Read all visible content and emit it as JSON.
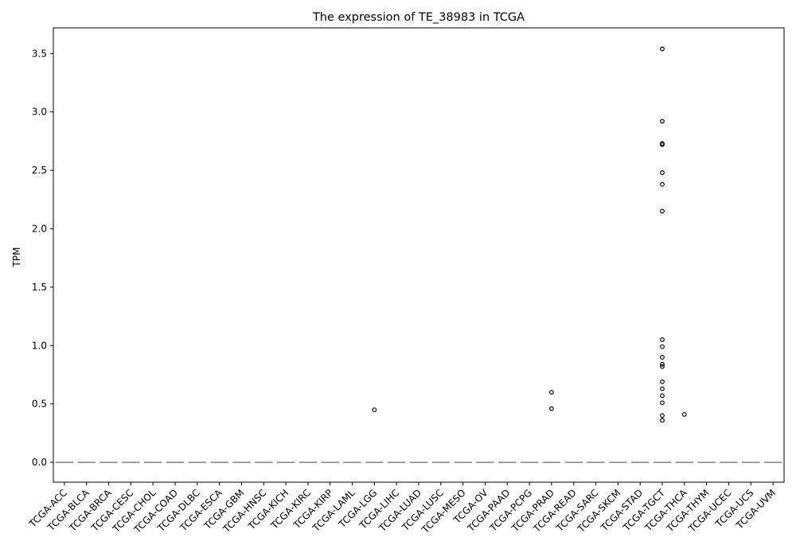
{
  "chart_data": {
    "type": "box",
    "title": "The expression of TE_38983 in TCGA",
    "xlabel": "",
    "ylabel": "TPM",
    "ylim": [
      -0.17,
      3.72
    ],
    "yticks": [
      "0.0",
      "0.5",
      "1.0",
      "1.5",
      "2.0",
      "2.5",
      "3.0",
      "3.5"
    ],
    "categories": [
      "TCGA-ACC",
      "TCGA-BLCA",
      "TCGA-BRCA",
      "TCGA-CESC",
      "TCGA-CHOL",
      "TCGA-COAD",
      "TCGA-DLBC",
      "TCGA-ESCA",
      "TCGA-GBM",
      "TCGA-HNSC",
      "TCGA-KICH",
      "TCGA-KIRC",
      "TCGA-KIRP",
      "TCGA-LAML",
      "TCGA-LGG",
      "TCGA-LIHC",
      "TCGA-LUAD",
      "TCGA-LUSC",
      "TCGA-MESO",
      "TCGA-OV",
      "TCGA-PAAD",
      "TCGA-PCPG",
      "TCGA-PRAD",
      "TCGA-READ",
      "TCGA-SARC",
      "TCGA-SKCM",
      "TCGA-STAD",
      "TCGA-TGCT",
      "TCGA-THCA",
      "TCGA-THYM",
      "TCGA-UCEC",
      "TCGA-UCS",
      "TCGA-UVM"
    ],
    "median": [
      0,
      0,
      0,
      0,
      0,
      0,
      0,
      0,
      0,
      0,
      0,
      0,
      0,
      0,
      0,
      0,
      0,
      0,
      0,
      0,
      0,
      0,
      0,
      0,
      0,
      0,
      0,
      0,
      0,
      0,
      0,
      0,
      0
    ],
    "outliers": [
      {
        "category": "TCGA-LGG",
        "values": [
          0.45
        ]
      },
      {
        "category": "TCGA-PRAD",
        "values": [
          0.6,
          0.46
        ]
      },
      {
        "category": "TCGA-TGCT",
        "values": [
          3.54,
          2.92,
          2.73,
          2.72,
          2.48,
          2.38,
          2.15,
          1.05,
          0.99,
          0.9,
          0.84,
          0.82,
          0.69,
          0.63,
          0.57,
          0.51,
          0.4,
          0.36
        ]
      },
      {
        "category": "TCGA-THCA",
        "values": [
          0.41
        ]
      }
    ],
    "grid": false,
    "legend": "none",
    "box_color": "#4c72b0"
  }
}
